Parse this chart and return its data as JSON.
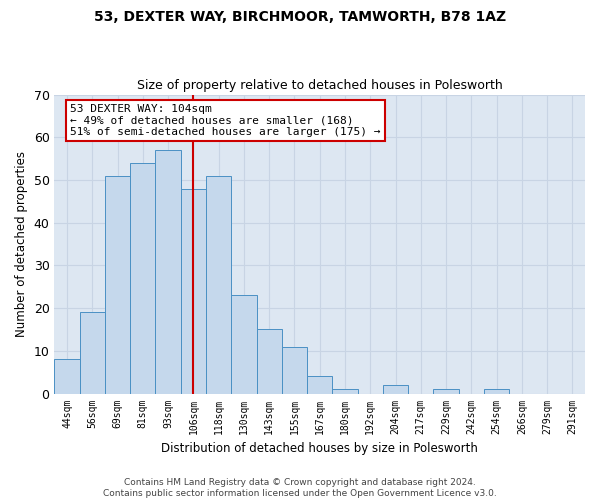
{
  "title1": "53, DEXTER WAY, BIRCHMOOR, TAMWORTH, B78 1AZ",
  "title2": "Size of property relative to detached houses in Polesworth",
  "xlabel": "Distribution of detached houses by size in Polesworth",
  "ylabel": "Number of detached properties",
  "bar_labels": [
    "44sqm",
    "56sqm",
    "69sqm",
    "81sqm",
    "93sqm",
    "106sqm",
    "118sqm",
    "130sqm",
    "143sqm",
    "155sqm",
    "167sqm",
    "180sqm",
    "192sqm",
    "204sqm",
    "217sqm",
    "229sqm",
    "242sqm",
    "254sqm",
    "266sqm",
    "279sqm",
    "291sqm"
  ],
  "bar_values": [
    8,
    19,
    51,
    54,
    57,
    48,
    51,
    23,
    15,
    11,
    4,
    1,
    0,
    2,
    0,
    1,
    0,
    1,
    0,
    0,
    0
  ],
  "bar_color": "#c5d8ec",
  "bar_edge_color": "#4a90c4",
  "vline_index": 5,
  "annotation_text": "53 DEXTER WAY: 104sqm\n← 49% of detached houses are smaller (168)\n51% of semi-detached houses are larger (175) →",
  "annotation_box_facecolor": "#ffffff",
  "annotation_box_edgecolor": "#cc0000",
  "vline_color": "#cc0000",
  "grid_color": "#c8d4e4",
  "bg_color": "#dde7f2",
  "ylim": [
    0,
    70
  ],
  "yticks": [
    0,
    10,
    20,
    30,
    40,
    50,
    60,
    70
  ],
  "footer1": "Contains HM Land Registry data © Crown copyright and database right 2024.",
  "footer2": "Contains public sector information licensed under the Open Government Licence v3.0."
}
